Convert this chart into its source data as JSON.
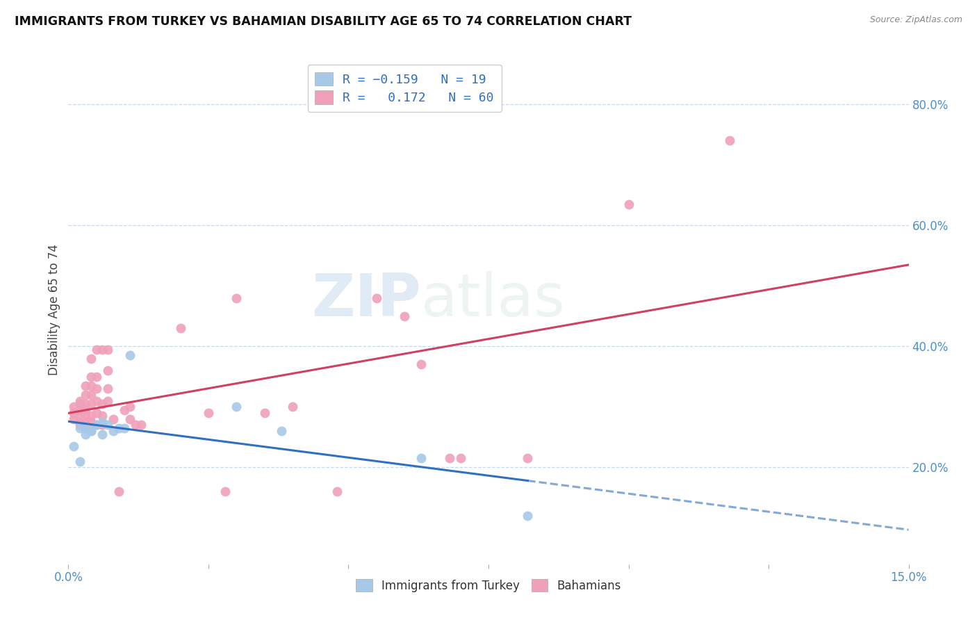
{
  "title": "IMMIGRANTS FROM TURKEY VS BAHAMIAN DISABILITY AGE 65 TO 74 CORRELATION CHART",
  "source": "Source: ZipAtlas.com",
  "ylabel": "Disability Age 65 to 74",
  "right_yticks": [
    "80.0%",
    "60.0%",
    "40.0%",
    "20.0%"
  ],
  "right_ytick_vals": [
    0.8,
    0.6,
    0.4,
    0.2
  ],
  "xlim": [
    0.0,
    0.15
  ],
  "ylim": [
    0.04,
    0.88
  ],
  "blue_color": "#a8c8e8",
  "pink_color": "#f0a0b8",
  "trend_blue": "#3070c0",
  "trend_pink": "#d04060",
  "watermark_zip": "ZIP",
  "watermark_atlas": "atlas",
  "blue_scatter_x": [
    0.001,
    0.002,
    0.002,
    0.003,
    0.003,
    0.004,
    0.004,
    0.005,
    0.006,
    0.006,
    0.007,
    0.008,
    0.009,
    0.01,
    0.011,
    0.03,
    0.038,
    0.063,
    0.082
  ],
  "blue_scatter_y": [
    0.235,
    0.21,
    0.265,
    0.255,
    0.265,
    0.26,
    0.26,
    0.27,
    0.275,
    0.255,
    0.27,
    0.26,
    0.265,
    0.265,
    0.385,
    0.3,
    0.26,
    0.215,
    0.12
  ],
  "pink_scatter_x": [
    0.001,
    0.001,
    0.001,
    0.001,
    0.002,
    0.002,
    0.002,
    0.002,
    0.002,
    0.002,
    0.003,
    0.003,
    0.003,
    0.003,
    0.003,
    0.003,
    0.003,
    0.004,
    0.004,
    0.004,
    0.004,
    0.004,
    0.004,
    0.004,
    0.005,
    0.005,
    0.005,
    0.005,
    0.005,
    0.005,
    0.006,
    0.006,
    0.006,
    0.006,
    0.007,
    0.007,
    0.007,
    0.007,
    0.008,
    0.009,
    0.01,
    0.011,
    0.011,
    0.012,
    0.013,
    0.02,
    0.025,
    0.028,
    0.03,
    0.035,
    0.04,
    0.048,
    0.055,
    0.06,
    0.063,
    0.068,
    0.07,
    0.082,
    0.1,
    0.118
  ],
  "pink_scatter_y": [
    0.28,
    0.29,
    0.29,
    0.3,
    0.27,
    0.275,
    0.285,
    0.295,
    0.305,
    0.31,
    0.27,
    0.275,
    0.285,
    0.295,
    0.305,
    0.32,
    0.335,
    0.275,
    0.285,
    0.305,
    0.32,
    0.335,
    0.35,
    0.38,
    0.27,
    0.29,
    0.31,
    0.33,
    0.35,
    0.395,
    0.27,
    0.285,
    0.305,
    0.395,
    0.31,
    0.33,
    0.36,
    0.395,
    0.28,
    0.16,
    0.295,
    0.28,
    0.3,
    0.27,
    0.27,
    0.43,
    0.29,
    0.16,
    0.48,
    0.29,
    0.3,
    0.16,
    0.48,
    0.45,
    0.37,
    0.215,
    0.215,
    0.215,
    0.635,
    0.74
  ]
}
